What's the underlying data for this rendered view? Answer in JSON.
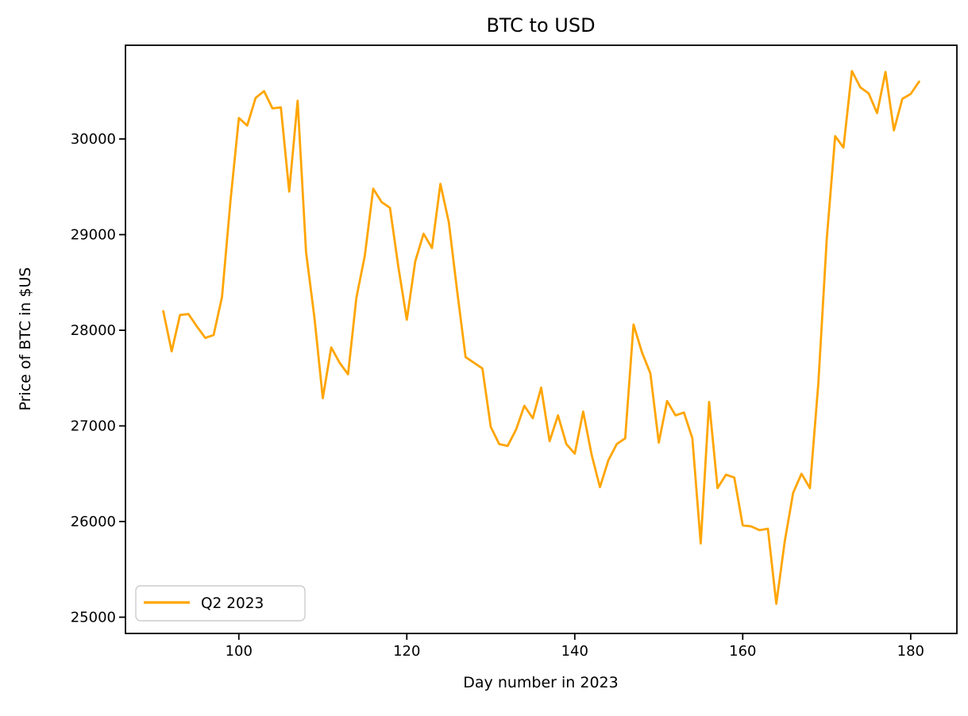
{
  "chart_data": {
    "type": "line",
    "title": "BTC to USD",
    "xlabel": "Day number in 2023",
    "ylabel": "Price of BTC in $US",
    "grid": false,
    "background_color": "#ffffff",
    "axis_color": "#000000",
    "line_color": "#FFA500",
    "line_width": 2.8,
    "xlim": [
      86.5,
      185.5
    ],
    "ylim": [
      24830,
      30980
    ],
    "xticks": [
      100,
      120,
      140,
      160,
      180
    ],
    "yticks": [
      25000,
      26000,
      27000,
      28000,
      29000,
      30000
    ],
    "legend": {
      "label": "Q2 2023",
      "position": "lower left"
    },
    "x": [
      91,
      92,
      93,
      94,
      95,
      96,
      97,
      98,
      99,
      100,
      101,
      102,
      103,
      104,
      105,
      106,
      107,
      108,
      109,
      110,
      111,
      112,
      113,
      114,
      115,
      116,
      117,
      118,
      119,
      120,
      121,
      122,
      123,
      124,
      125,
      126,
      127,
      128,
      129,
      130,
      131,
      132,
      133,
      134,
      135,
      136,
      137,
      138,
      139,
      140,
      141,
      142,
      143,
      144,
      145,
      146,
      147,
      148,
      149,
      150,
      151,
      152,
      153,
      154,
      155,
      156,
      157,
      158,
      159,
      160,
      161,
      162,
      163,
      164,
      165,
      166,
      167,
      168,
      169,
      170,
      171,
      172,
      173,
      174,
      175,
      176,
      177,
      178,
      179,
      180,
      181
    ],
    "series": [
      {
        "name": "Q2 2023",
        "values": [
          28200,
          27780,
          28160,
          28170,
          28040,
          27920,
          27950,
          28350,
          29350,
          30220,
          30140,
          30430,
          30500,
          30320,
          30330,
          29450,
          30400,
          28820,
          28130,
          27290,
          27820,
          27660,
          27540,
          28340,
          28780,
          29480,
          29340,
          29280,
          28660,
          28110,
          28720,
          29010,
          28860,
          29530,
          29130,
          28410,
          27720,
          27660,
          27600,
          26990,
          26810,
          26790,
          26960,
          27210,
          27080,
          27400,
          26840,
          27110,
          26810,
          26710,
          27150,
          26700,
          26360,
          26640,
          26810,
          26870,
          28060,
          27770,
          27550,
          26825,
          27260,
          27110,
          27140,
          26870,
          25770,
          27250,
          26350,
          26490,
          26460,
          25960,
          25950,
          25910,
          25925,
          25140,
          25790,
          26300,
          26500,
          26350,
          27440,
          28950,
          30030,
          29910,
          30710,
          30540,
          30475,
          30270,
          30700,
          30090,
          30420,
          30470,
          30600
        ]
      }
    ]
  }
}
